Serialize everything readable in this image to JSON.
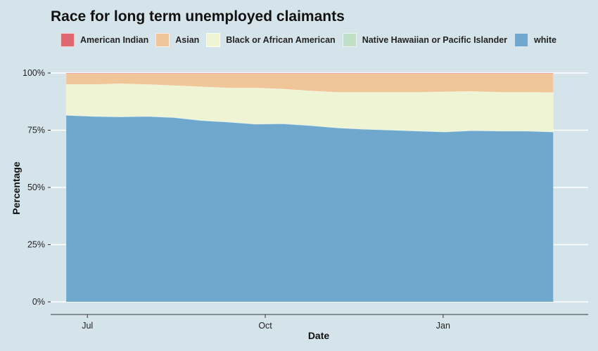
{
  "chart_data": {
    "type": "area",
    "stacked": true,
    "percent_stacked": true,
    "title": "Race for long term unemployed claimants",
    "xlabel": "Date",
    "ylabel": "Percentage",
    "legend_position": "top",
    "grid": "horizontal",
    "ylim": [
      0,
      100
    ],
    "y_ticks": [
      0,
      25,
      50,
      75,
      100
    ],
    "y_tick_labels": [
      "0%",
      "25%",
      "50%",
      "75%",
      "100%"
    ],
    "xlim": [
      "2020-06-12",
      "2021-03-17"
    ],
    "x_ticks": [
      "2020-07-01",
      "2020-10-01",
      "2021-01-01"
    ],
    "x_tick_labels": [
      "Jul",
      "Oct",
      "Jan"
    ],
    "x": [
      "2020-06-20",
      "2020-07-04",
      "2020-07-18",
      "2020-08-01",
      "2020-08-15",
      "2020-08-29",
      "2020-09-12",
      "2020-09-26",
      "2020-10-10",
      "2020-10-24",
      "2020-11-07",
      "2020-11-21",
      "2020-12-05",
      "2020-12-19",
      "2021-01-02",
      "2021-01-16",
      "2021-01-30",
      "2021-02-13",
      "2021-02-27"
    ],
    "series": [
      {
        "name": "white",
        "color": "#6fa8cc",
        "values": [
          81.5,
          81.0,
          80.8,
          81.0,
          80.5,
          79.2,
          78.5,
          77.6,
          77.8,
          77.0,
          76.0,
          75.4,
          75.0,
          74.6,
          74.2,
          74.8,
          74.6,
          74.6,
          74.2
        ]
      },
      {
        "name": "Native Hawaiian or Pacific Islander",
        "color": "#bfe0c6",
        "values": [
          0.2,
          0.2,
          0.2,
          0.2,
          0.2,
          0.2,
          0.2,
          0.2,
          0.2,
          0.2,
          0.2,
          0.2,
          0.2,
          0.2,
          0.2,
          0.2,
          0.2,
          0.2,
          0.2
        ]
      },
      {
        "name": "Black or African American",
        "color": "#eff5d4",
        "values": [
          13.3,
          13.8,
          14.3,
          13.8,
          13.8,
          14.6,
          14.8,
          15.7,
          15.0,
          15.0,
          15.4,
          16.0,
          16.4,
          16.8,
          17.4,
          17.0,
          16.8,
          16.8,
          17.1
        ]
      },
      {
        "name": "Asian",
        "color": "#f0c597",
        "values": [
          4.8,
          4.8,
          4.5,
          4.8,
          5.3,
          5.8,
          6.3,
          6.3,
          6.8,
          7.6,
          8.2,
          8.2,
          8.2,
          8.2,
          8.0,
          7.8,
          8.2,
          8.2,
          8.3
        ]
      },
      {
        "name": "American Indian",
        "color": "#e06670",
        "values": [
          0.2,
          0.2,
          0.2,
          0.2,
          0.2,
          0.2,
          0.2,
          0.2,
          0.2,
          0.2,
          0.2,
          0.2,
          0.2,
          0.2,
          0.2,
          0.2,
          0.2,
          0.2,
          0.2
        ]
      }
    ],
    "legend_order": [
      "American Indian",
      "Asian",
      "Black or African American",
      "Native Hawaiian or Pacific Islander",
      "white"
    ]
  }
}
